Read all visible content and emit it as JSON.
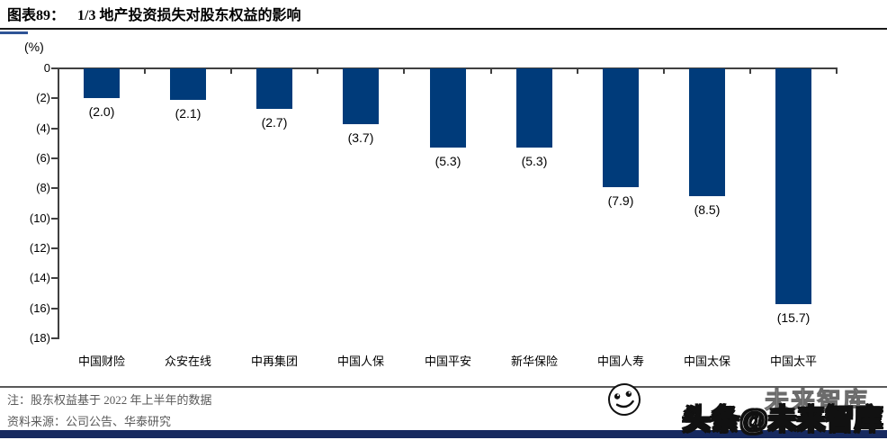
{
  "header": {
    "figure_label": "图表89：",
    "title": "1/3 地产投资损失对股东权益的影响"
  },
  "chart_data": {
    "type": "bar",
    "title": "1/3 地产投资损失对股东权益的影响",
    "unit_label": "(%)",
    "categories": [
      "中国财险",
      "众安在线",
      "中再集团",
      "中国人保",
      "中国平安",
      "新华保险",
      "中国人寿",
      "中国太保",
      "中国太平"
    ],
    "values": [
      -2.0,
      -2.1,
      -2.7,
      -3.7,
      -5.3,
      -5.3,
      -7.9,
      -8.5,
      -15.7
    ],
    "value_labels": [
      "(2.0)",
      "(2.1)",
      "(2.7)",
      "(3.7)",
      "(5.3)",
      "(5.3)",
      "(7.9)",
      "(8.5)",
      "(15.7)"
    ],
    "y_ticks": [
      "0",
      "(2)",
      "(4)",
      "(6)",
      "(8)",
      "(10)",
      "(12)",
      "(14)",
      "(16)",
      "(18)"
    ],
    "ylim": [
      -18,
      0
    ],
    "xlabel": "",
    "ylabel": "(%)",
    "grid": false,
    "legend": false,
    "bar_color": "#003b7a"
  },
  "notes": {
    "note": "注：股东权益基于 2022 年上半年的数据",
    "source": "资料来源：公司公告、华泰研究"
  },
  "watermark": {
    "ghost_text": "未来智库",
    "text": "头条@未来智库"
  },
  "colors": {
    "bar": "#003b7a",
    "axis": "#404040",
    "accent": "#2f5496",
    "note_text": "#595959",
    "footer_bar": "#16295f"
  }
}
